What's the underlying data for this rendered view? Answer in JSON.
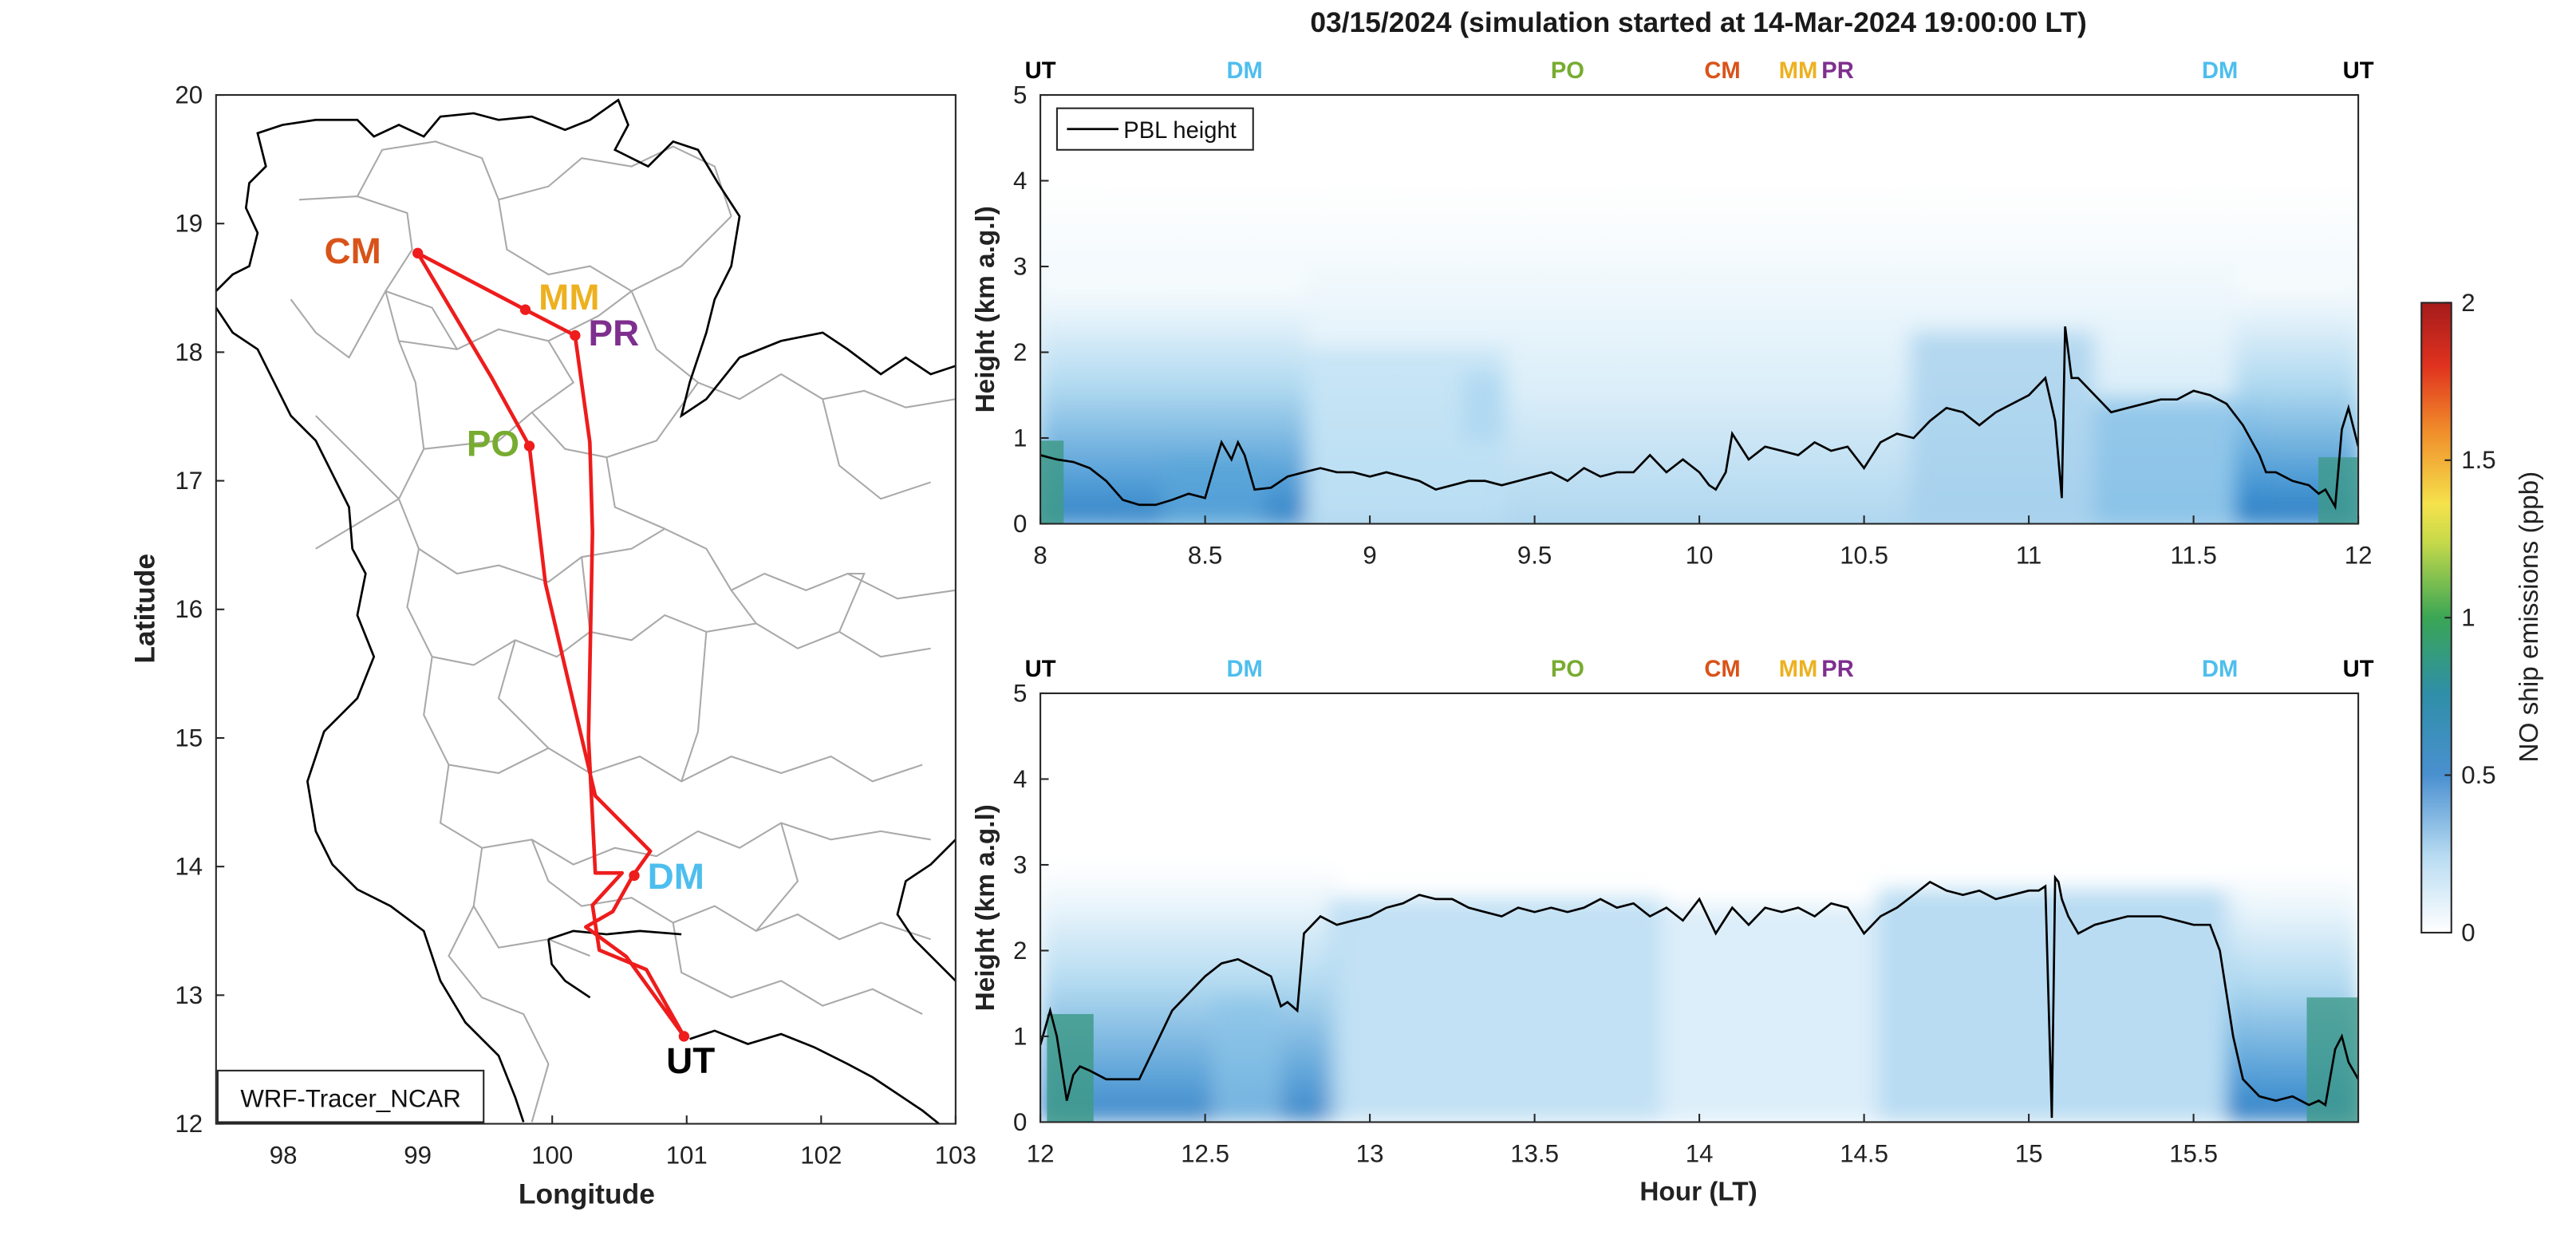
{
  "figure": {
    "title": "03/15/2024 (simulation started at 14-Mar-2024 19:00:00 LT)"
  },
  "colors": {
    "route": "#ee1c1c",
    "UT": "#000000",
    "DM": "#4dbeee",
    "PO": "#77ac30",
    "CM": "#d95319",
    "MM": "#edb120",
    "PR": "#7e2f8e",
    "pbl": "#000000",
    "boundary_country": "#000000",
    "boundary_province": "#a0a0a0"
  },
  "chart_data": [
    {
      "id": "map",
      "type": "scatter",
      "xlabel": "Longitude",
      "ylabel": "Latitude",
      "xlim": [
        97.5,
        103
      ],
      "ylim": [
        12,
        20
      ],
      "xticks": [
        "98",
        "99",
        "100",
        "101",
        "102",
        "103"
      ],
      "yticks": [
        "12",
        "13",
        "14",
        "15",
        "16",
        "17",
        "18",
        "19",
        "20"
      ],
      "annotation_box": "WRF-Tracer_NCAR",
      "sites": [
        {
          "name": "CM",
          "lon": 99.0,
          "lat": 18.77
        },
        {
          "name": "MM",
          "lon": 99.8,
          "lat": 18.33
        },
        {
          "name": "PR",
          "lon": 100.17,
          "lat": 18.13
        },
        {
          "name": "PO",
          "lon": 99.83,
          "lat": 17.27
        },
        {
          "name": "DM",
          "lon": 100.61,
          "lat": 13.93
        },
        {
          "name": "UT",
          "lon": 100.98,
          "lat": 12.68
        }
      ],
      "flight_track": [
        [
          100.98,
          12.68
        ],
        [
          100.55,
          13.3
        ],
        [
          100.25,
          13.53
        ],
        [
          100.45,
          13.65
        ],
        [
          100.6,
          13.93
        ],
        [
          100.73,
          14.12
        ],
        [
          100.32,
          14.55
        ],
        [
          99.95,
          16.2
        ],
        [
          99.83,
          17.27
        ],
        [
          99.55,
          17.8
        ],
        [
          99.0,
          18.77
        ],
        [
          99.8,
          18.33
        ],
        [
          100.17,
          18.13
        ],
        [
          100.28,
          17.3
        ],
        [
          100.3,
          16.6
        ],
        [
          100.27,
          15.0
        ],
        [
          100.32,
          13.95
        ],
        [
          100.52,
          13.95
        ],
        [
          100.3,
          13.7
        ],
        [
          100.35,
          13.35
        ],
        [
          100.7,
          13.2
        ],
        [
          100.98,
          12.68
        ]
      ]
    },
    {
      "id": "curtain-top",
      "type": "heatmap",
      "ylabel": "Height (km a.g.l)",
      "xlim": [
        8,
        12
      ],
      "ylim": [
        0,
        5
      ],
      "xticks": [
        "8",
        "8.5",
        "9",
        "9.5",
        "10",
        "10.5",
        "11",
        "11.5",
        "12"
      ],
      "yticks": [
        "0",
        "1",
        "2",
        "3",
        "4",
        "5"
      ],
      "legend": "PBL height",
      "site_markers": [
        {
          "label": "UT",
          "x": 8.0
        },
        {
          "label": "DM",
          "x": 8.62
        },
        {
          "label": "PO",
          "x": 9.6
        },
        {
          "label": "CM",
          "x": 10.07
        },
        {
          "label": "MM",
          "x": 10.3
        },
        {
          "label": "PR",
          "x": 10.42
        },
        {
          "label": "DM",
          "x": 11.58
        },
        {
          "label": "UT",
          "x": 12.0
        }
      ],
      "pbl_height": {
        "x": [
          8.0,
          8.05,
          8.1,
          8.15,
          8.2,
          8.25,
          8.3,
          8.35,
          8.4,
          8.45,
          8.5,
          8.53,
          8.55,
          8.58,
          8.6,
          8.62,
          8.65,
          8.7,
          8.75,
          8.8,
          8.85,
          8.9,
          8.95,
          9.0,
          9.05,
          9.1,
          9.15,
          9.2,
          9.25,
          9.3,
          9.35,
          9.4,
          9.45,
          9.5,
          9.55,
          9.6,
          9.65,
          9.7,
          9.75,
          9.8,
          9.85,
          9.9,
          9.95,
          10.0,
          10.03,
          10.05,
          10.08,
          10.1,
          10.15,
          10.2,
          10.25,
          10.3,
          10.35,
          10.4,
          10.45,
          10.5,
          10.55,
          10.6,
          10.65,
          10.7,
          10.75,
          10.8,
          10.85,
          10.9,
          10.95,
          11.0,
          11.05,
          11.08,
          11.1,
          11.11,
          11.13,
          11.15,
          11.2,
          11.25,
          11.3,
          11.35,
          11.4,
          11.45,
          11.5,
          11.55,
          11.6,
          11.65,
          11.7,
          11.72,
          11.75,
          11.8,
          11.85,
          11.88,
          11.9,
          11.93,
          11.95,
          11.97,
          12.0
        ],
        "y": [
          0.8,
          0.75,
          0.72,
          0.65,
          0.5,
          0.28,
          0.22,
          0.22,
          0.28,
          0.35,
          0.3,
          0.7,
          0.95,
          0.75,
          0.95,
          0.8,
          0.4,
          0.42,
          0.55,
          0.6,
          0.65,
          0.6,
          0.6,
          0.55,
          0.6,
          0.55,
          0.5,
          0.4,
          0.45,
          0.5,
          0.5,
          0.45,
          0.5,
          0.55,
          0.6,
          0.5,
          0.65,
          0.55,
          0.6,
          0.6,
          0.8,
          0.6,
          0.75,
          0.6,
          0.45,
          0.4,
          0.6,
          1.05,
          0.75,
          0.9,
          0.85,
          0.8,
          0.95,
          0.85,
          0.9,
          0.65,
          0.95,
          1.05,
          1.0,
          1.2,
          1.35,
          1.3,
          1.15,
          1.3,
          1.4,
          1.5,
          1.7,
          1.2,
          0.3,
          2.3,
          1.7,
          1.7,
          1.5,
          1.3,
          1.35,
          1.4,
          1.45,
          1.45,
          1.55,
          1.5,
          1.4,
          1.15,
          0.8,
          0.6,
          0.6,
          0.5,
          0.45,
          0.35,
          0.4,
          0.2,
          1.1,
          1.35,
          0.9
        ]
      }
    },
    {
      "id": "curtain-bottom",
      "type": "heatmap",
      "xlabel": "Hour (LT)",
      "ylabel": "Height (km a.g.l)",
      "xlim": [
        12,
        16
      ],
      "ylim": [
        0,
        5
      ],
      "xticks": [
        "12",
        "12.5",
        "13",
        "13.5",
        "14",
        "14.5",
        "15",
        "15.5"
      ],
      "yticks": [
        "0",
        "1",
        "2",
        "3",
        "4",
        "5"
      ],
      "site_markers": [
        {
          "label": "UT",
          "x": 12.0
        },
        {
          "label": "DM",
          "x": 12.62
        },
        {
          "label": "PO",
          "x": 13.6
        },
        {
          "label": "CM",
          "x": 14.07
        },
        {
          "label": "MM",
          "x": 14.3
        },
        {
          "label": "PR",
          "x": 14.42
        },
        {
          "label": "DM",
          "x": 15.58
        },
        {
          "label": "UT",
          "x": 16.0
        }
      ],
      "pbl_height": {
        "x": [
          12.0,
          12.03,
          12.05,
          12.08,
          12.1,
          12.12,
          12.15,
          12.2,
          12.25,
          12.3,
          12.35,
          12.4,
          12.45,
          12.5,
          12.55,
          12.6,
          12.65,
          12.7,
          12.73,
          12.75,
          12.78,
          12.8,
          12.85,
          12.9,
          12.95,
          13.0,
          13.05,
          13.1,
          13.15,
          13.2,
          13.25,
          13.3,
          13.35,
          13.4,
          13.45,
          13.5,
          13.55,
          13.6,
          13.65,
          13.7,
          13.75,
          13.8,
          13.85,
          13.9,
          13.95,
          14.0,
          14.05,
          14.1,
          14.15,
          14.2,
          14.25,
          14.3,
          14.35,
          14.4,
          14.45,
          14.5,
          14.55,
          14.6,
          14.65,
          14.7,
          14.75,
          14.8,
          14.85,
          14.9,
          14.95,
          15.0,
          15.03,
          15.05,
          15.07,
          15.08,
          15.09,
          15.1,
          15.12,
          15.15,
          15.2,
          15.25,
          15.3,
          15.35,
          15.4,
          15.45,
          15.5,
          15.55,
          15.58,
          15.6,
          15.62,
          15.65,
          15.7,
          15.75,
          15.8,
          15.85,
          15.88,
          15.9,
          15.93,
          15.95,
          15.97,
          16.0
        ],
        "y": [
          0.9,
          1.3,
          1.0,
          0.25,
          0.55,
          0.65,
          0.6,
          0.5,
          0.5,
          0.5,
          0.9,
          1.3,
          1.5,
          1.7,
          1.85,
          1.9,
          1.8,
          1.7,
          1.35,
          1.4,
          1.3,
          2.2,
          2.4,
          2.3,
          2.35,
          2.4,
          2.5,
          2.55,
          2.65,
          2.6,
          2.6,
          2.5,
          2.45,
          2.4,
          2.5,
          2.45,
          2.5,
          2.45,
          2.5,
          2.6,
          2.5,
          2.55,
          2.4,
          2.5,
          2.35,
          2.6,
          2.2,
          2.5,
          2.3,
          2.5,
          2.45,
          2.5,
          2.4,
          2.55,
          2.5,
          2.2,
          2.4,
          2.5,
          2.65,
          2.8,
          2.7,
          2.65,
          2.7,
          2.6,
          2.65,
          2.7,
          2.7,
          2.75,
          0.05,
          2.85,
          2.8,
          2.6,
          2.4,
          2.2,
          2.3,
          2.35,
          2.4,
          2.4,
          2.4,
          2.35,
          2.3,
          2.3,
          2.0,
          1.5,
          1.0,
          0.5,
          0.3,
          0.25,
          0.3,
          0.2,
          0.25,
          0.2,
          0.85,
          1.0,
          0.7,
          0.5
        ]
      }
    }
  ],
  "colorbar": {
    "label": "NO ship emissions (ppb)",
    "ticks": [
      "0",
      "0.5",
      "1",
      "1.5",
      "2"
    ],
    "range": [
      0,
      2
    ]
  }
}
